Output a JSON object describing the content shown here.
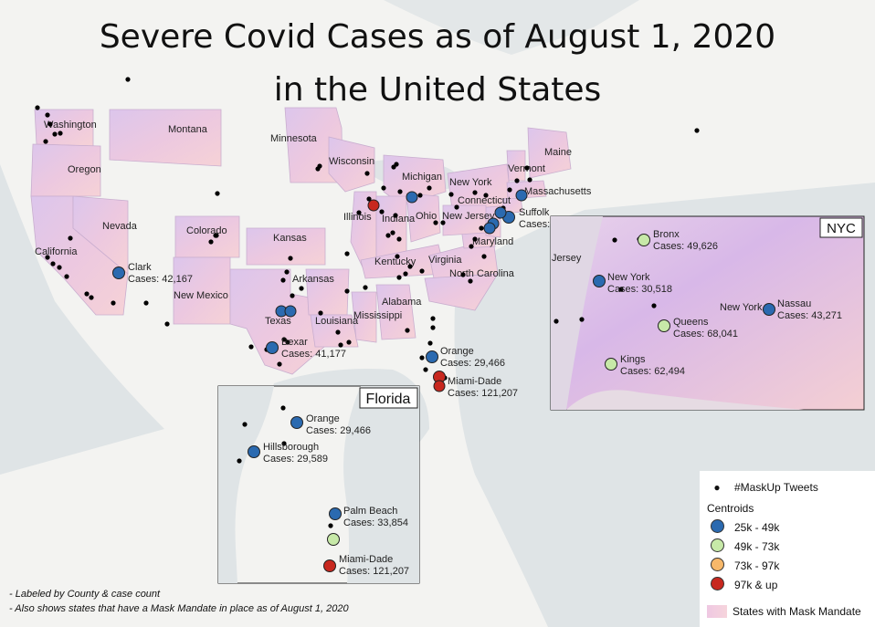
{
  "title_line1": "Severe Covid Cases as of August 1, 2020",
  "title_line2": "in the United States",
  "notes": [
    "- Labeled by County & case count",
    "- Also shows states that have a Mask Mandate in place as of August 1, 2020"
  ],
  "colors": {
    "bin_25_49": "#2b6ab0",
    "bin_49_73": "#c7e9a8",
    "bin_73_97": "#f7b86a",
    "bin_97_up": "#c8281f",
    "mandate_fill": "#e9c4dd",
    "tweet_dot": "#000000"
  },
  "legend": {
    "tweets": "#MaskUp Tweets",
    "centroids_title": "Centroids",
    "bins": [
      "25k - 49k",
      "49k - 73k",
      "73k - 97k",
      "97k & up"
    ],
    "mandate": "States with Mask Mandate"
  },
  "state_labels": [
    "Washington",
    "Montana",
    "Minnesota",
    "Maine",
    "Wisconsin",
    "Oregon",
    "Michigan",
    "Vermont",
    "Massachusetts",
    "New York",
    "Connecticut",
    "Nevada",
    "Colorado",
    "Kansas",
    "Illinois",
    "Indiana",
    "Ohio",
    "New Jersey",
    "California",
    "Maryland",
    "Kentucky",
    "Virginia",
    "Arkansas",
    "North Carolina",
    "New Mexico",
    "Alabama",
    "Texas",
    "Louisiana",
    "Mississippi"
  ],
  "counties_main": [
    {
      "name": "Clark",
      "cases": "Cases: 42,167",
      "bin": 0
    },
    {
      "name": "Bexar",
      "cases": "Cases: 41,177",
      "bin": 0
    },
    {
      "name": "Orange",
      "cases": "Cases: 29,466",
      "bin": 0
    },
    {
      "name": "Miami-Dade",
      "cases": "Cases: 121,207",
      "bin": 3
    },
    {
      "name": "Suffolk",
      "cases": "Cases:",
      "bin": 0
    }
  ],
  "florida_inset": {
    "title": "Florida",
    "counties": [
      {
        "name": "Orange",
        "cases": "Cases: 29,466",
        "bin": 0
      },
      {
        "name": "Hillsborough",
        "cases": "Cases: 29,589",
        "bin": 0
      },
      {
        "name": "Palm Beach",
        "cases": "Cases: 33,854",
        "bin": 0
      },
      {
        "name": "Miami-Dade",
        "cases": "Cases: 121,207",
        "bin": 3
      }
    ]
  },
  "nyc_inset": {
    "title": "NYC",
    "place_labels": [
      "Jersey",
      "New York"
    ],
    "counties": [
      {
        "name": "Bronx",
        "cases": "Cases: 49,626",
        "bin": 1
      },
      {
        "name": "New York",
        "cases": "Cases: 30,518",
        "bin": 0
      },
      {
        "name": "Nassau",
        "cases": "Cases: 43,271",
        "bin": 0
      },
      {
        "name": "Queens",
        "cases": "Cases: 68,041",
        "bin": 1
      },
      {
        "name": "Kings",
        "cases": "Cases: 62,494",
        "bin": 1
      }
    ]
  }
}
